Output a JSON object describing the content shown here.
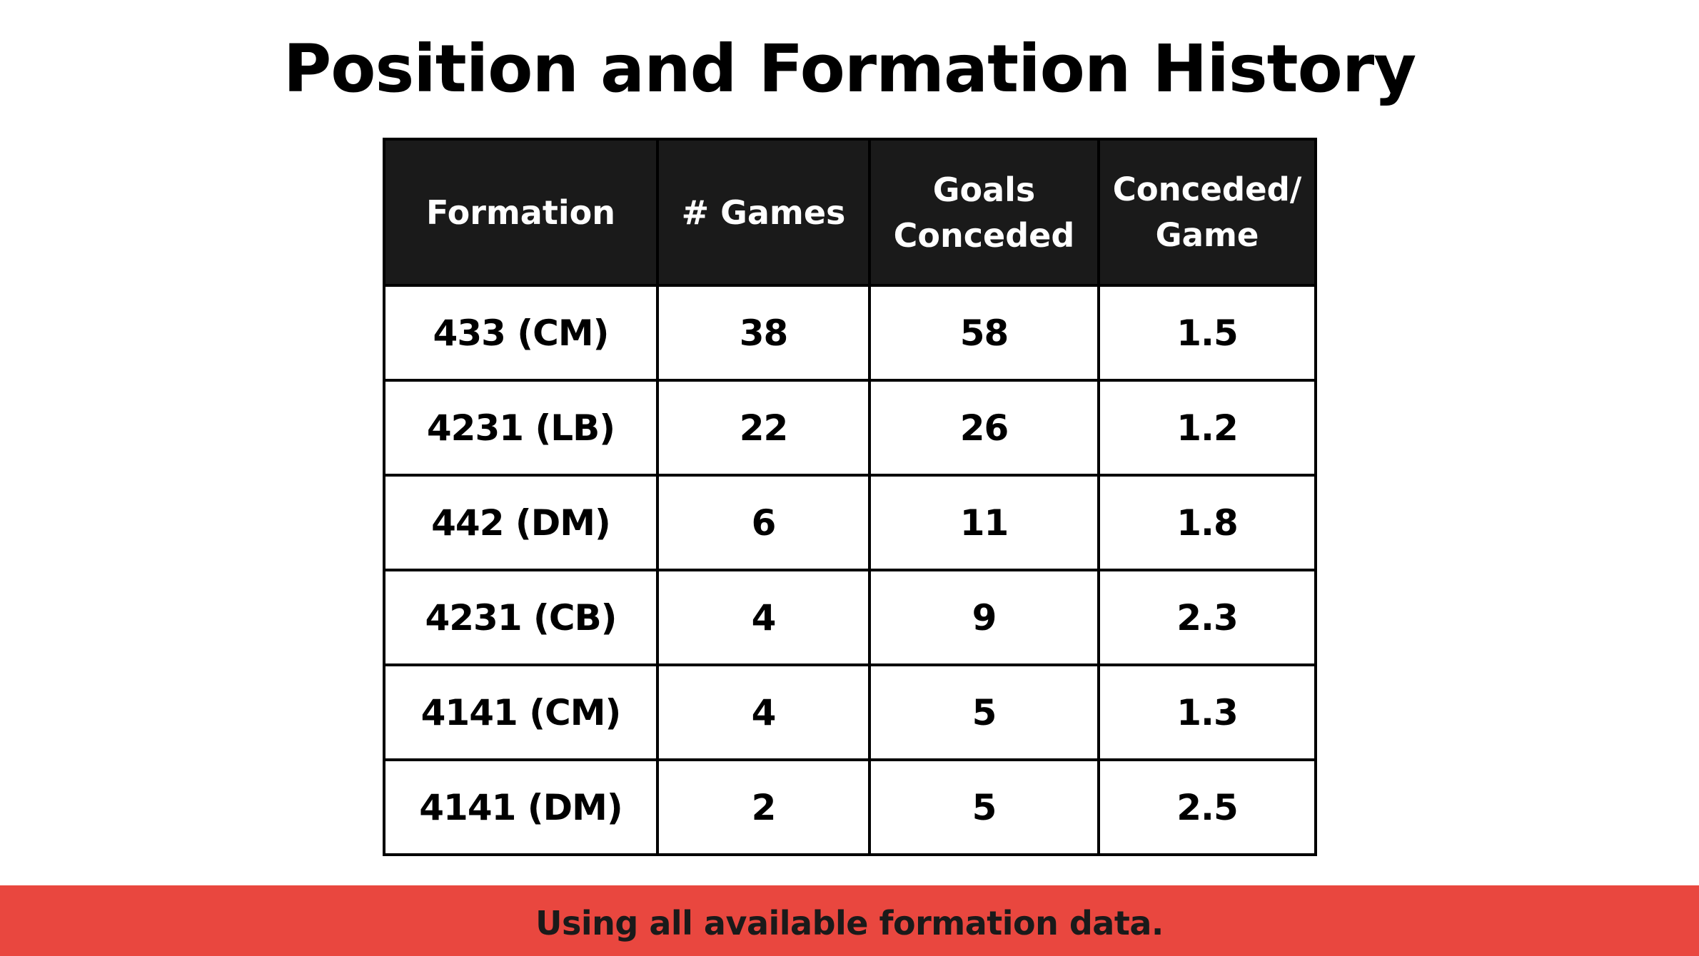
{
  "page": {
    "title": "Position and Formation History"
  },
  "table": {
    "headers": [
      {
        "line1": "Formation",
        "line2": ""
      },
      {
        "line1": "# Games",
        "line2": ""
      },
      {
        "line1": "Goals",
        "line2": "Conceded"
      },
      {
        "line1": "Conceded/",
        "line2": "Game"
      }
    ],
    "rows": [
      [
        "433 (CM)",
        "38",
        "58",
        "1.5"
      ],
      [
        "4231 (LB)",
        "22",
        "26",
        "1.2"
      ],
      [
        "442 (DM)",
        "6",
        "11",
        "1.8"
      ],
      [
        "4231 (CB)",
        "4",
        "9",
        "2.3"
      ],
      [
        "4141 (CM)",
        "4",
        "5",
        "1.3"
      ],
      [
        "4141 (DM)",
        "2",
        "5",
        "2.5"
      ]
    ]
  },
  "footer": {
    "text": "Using all available formation data."
  },
  "colors": {
    "header_bg": "#1a1a1a",
    "footer_bg": "#e9473f",
    "border": "#000000"
  }
}
